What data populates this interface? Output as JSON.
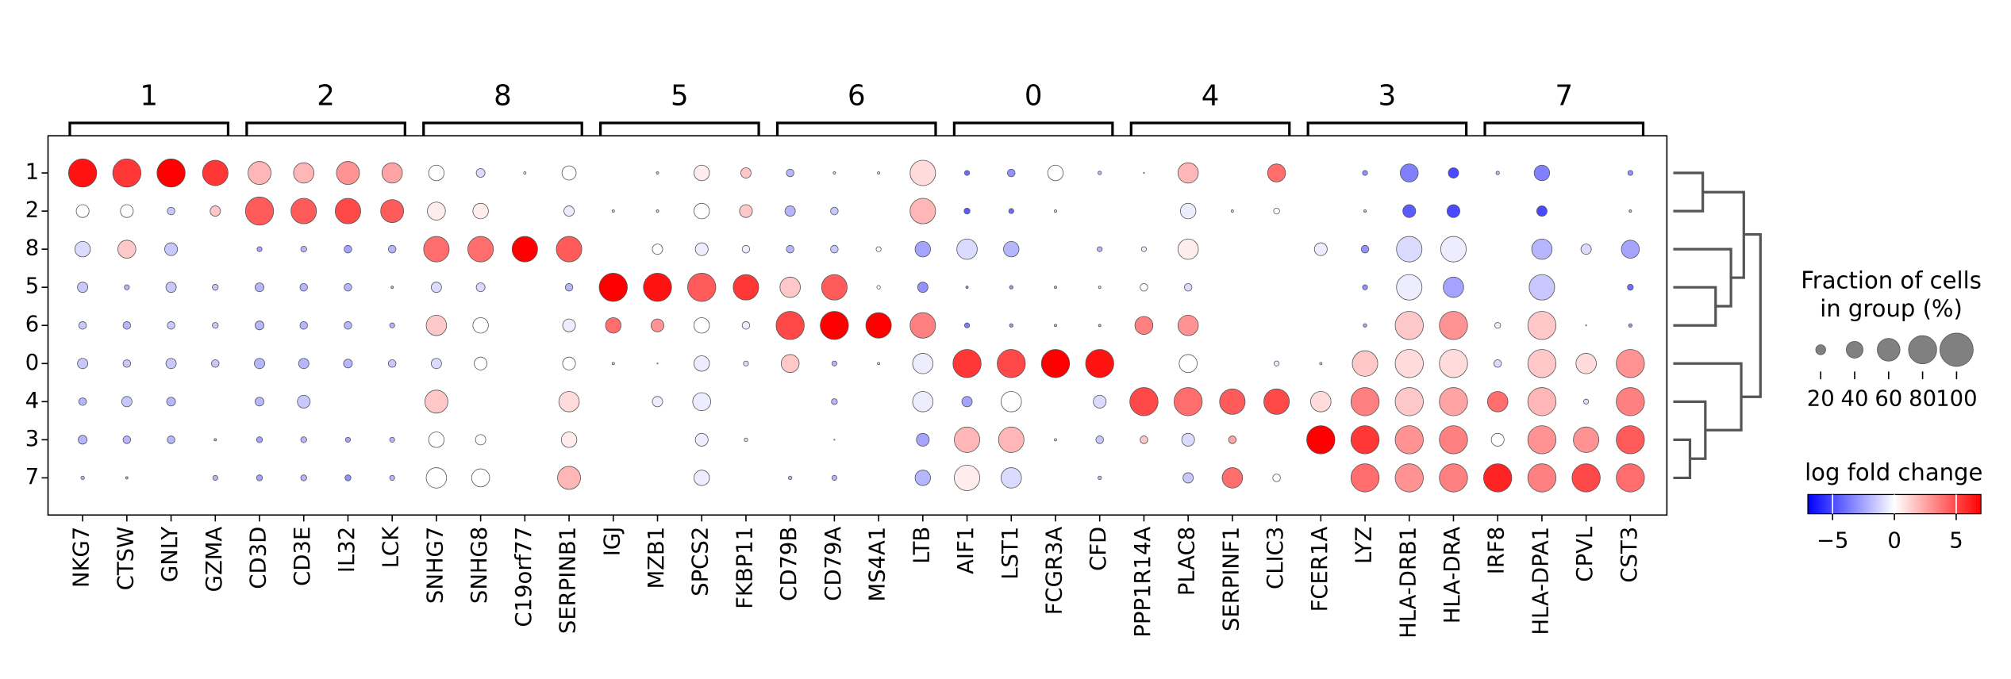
{
  "chart_data": {
    "type": "dotplot",
    "groups": [
      "1",
      "2",
      "8",
      "5",
      "6",
      "0",
      "4",
      "3",
      "7"
    ],
    "gene_groups": [
      {
        "label": "1",
        "genes": [
          "NKG7",
          "CTSW",
          "GNLY",
          "GZMA"
        ]
      },
      {
        "label": "2",
        "genes": [
          "CD3D",
          "CD3E",
          "IL32",
          "LCK"
        ]
      },
      {
        "label": "8",
        "genes": [
          "SNHG7",
          "SNHG8",
          "C19orf77",
          "SERPINB1"
        ]
      },
      {
        "label": "5",
        "genes": [
          "IGJ",
          "MZB1",
          "SPCS2",
          "FKBP11"
        ]
      },
      {
        "label": "6",
        "genes": [
          "CD79B",
          "CD79A",
          "MS4A1",
          "LTB"
        ]
      },
      {
        "label": "0",
        "genes": [
          "AIF1",
          "LST1",
          "FCGR3A",
          "CFD"
        ]
      },
      {
        "label": "4",
        "genes": [
          "PPP1R14A",
          "PLAC8",
          "SERPINF1",
          "CLIC3"
        ]
      },
      {
        "label": "3",
        "genes": [
          "FCER1A",
          "LYZ",
          "HLA-DRB1",
          "HLA-DRA"
        ]
      },
      {
        "label": "7",
        "genes": [
          "IRF8",
          "HLA-DPA1",
          "CPVL",
          "CST3"
        ]
      }
    ],
    "fraction": [
      [
        80,
        28,
        36,
        21,
        14,
        21,
        14,
        17,
        5
      ],
      [
        80,
        28,
        44,
        8,
        14,
        14,
        21,
        14,
        3
      ],
      [
        80,
        14,
        28,
        21,
        14,
        21,
        17,
        14,
        0
      ],
      [
        70,
        21,
        0,
        10,
        10,
        14,
        0,
        3,
        8
      ],
      [
        61,
        80,
        8,
        17,
        17,
        21,
        17,
        10,
        10
      ],
      [
        52,
        70,
        10,
        14,
        14,
        21,
        28,
        10,
        10
      ],
      [
        61,
        70,
        14,
        14,
        14,
        17,
        0,
        8,
        10
      ],
      [
        52,
        61,
        14,
        3,
        8,
        14,
        0,
        8,
        8
      ],
      [
        36,
        44,
        70,
        21,
        52,
        21,
        61,
        36,
        52
      ],
      [
        17,
        36,
        70,
        17,
        36,
        28,
        0,
        21,
        44
      ],
      [
        3,
        0,
        70,
        0,
        0,
        0,
        0,
        0,
        0
      ],
      [
        32,
        21,
        70,
        14,
        28,
        28,
        52,
        36,
        61
      ],
      [
        0,
        3,
        0,
        80,
        36,
        3,
        0,
        0,
        0
      ],
      [
        3,
        3,
        21,
        80,
        28,
        1,
        21,
        0,
        0
      ],
      [
        36,
        36,
        28,
        80,
        36,
        36,
        44,
        28,
        36
      ],
      [
        21,
        28,
        14,
        70,
        14,
        8,
        0,
        5,
        0
      ],
      [
        14,
        21,
        14,
        52,
        80,
        44,
        0,
        0,
        5
      ],
      [
        3,
        14,
        14,
        70,
        80,
        8,
        10,
        1,
        8
      ],
      [
        3,
        0,
        8,
        5,
        70,
        3,
        0,
        0,
        0
      ],
      [
        70,
        70,
        36,
        21,
        70,
        52,
        52,
        28,
        36
      ],
      [
        8,
        10,
        52,
        3,
        8,
        80,
        21,
        70,
        70
      ],
      [
        14,
        8,
        36,
        5,
        5,
        80,
        52,
        70,
        52
      ],
      [
        36,
        3,
        0,
        3,
        3,
        80,
        0,
        3,
        0
      ],
      [
        5,
        0,
        8,
        3,
        3,
        80,
        28,
        14,
        5
      ],
      [
        1,
        0,
        8,
        14,
        44,
        0,
        80,
        14,
        0
      ],
      [
        52,
        36,
        52,
        14,
        52,
        44,
        80,
        28,
        21
      ],
      [
        0,
        3,
        0,
        0,
        0,
        0,
        70,
        14,
        52
      ],
      [
        44,
        10,
        0,
        0,
        0,
        8,
        70,
        0,
        14
      ],
      [
        0,
        0,
        28,
        0,
        0,
        3,
        52,
        80,
        0
      ],
      [
        8,
        3,
        14,
        8,
        5,
        70,
        80,
        80,
        80
      ],
      [
        44,
        28,
        70,
        70,
        80,
        80,
        80,
        80,
        80
      ],
      [
        21,
        28,
        70,
        52,
        80,
        80,
        80,
        80,
        80
      ],
      [
        5,
        0,
        0,
        0,
        10,
        14,
        52,
        28,
        80
      ],
      [
        36,
        21,
        52,
        70,
        80,
        80,
        80,
        80,
        80
      ],
      [
        0,
        0,
        21,
        0,
        1,
        52,
        8,
        70,
        80
      ],
      [
        8,
        3,
        44,
        10,
        5,
        80,
        80,
        80,
        80
      ]
    ],
    "logfc": [
      [
        6.5,
        0,
        -1,
        -1.5,
        -1.5,
        -1.5,
        -2,
        -2,
        -2
      ],
      [
        5.5,
        0,
        1.5,
        -2,
        -2,
        -1.5,
        -1.5,
        -2,
        -2
      ],
      [
        7,
        -1.5,
        -1.5,
        -1.5,
        -1.5,
        -1.5,
        -2,
        -2,
        0
      ],
      [
        5.5,
        1.5,
        0,
        -1.5,
        -1.5,
        -1.5,
        0,
        -2,
        -2
      ],
      [
        2,
        4.5,
        -2.5,
        -2,
        -2,
        -2,
        -2,
        -2.5,
        -2.5
      ],
      [
        2,
        4.5,
        -2,
        -2,
        -2,
        -2,
        -1.5,
        -2,
        -2
      ],
      [
        3,
        5,
        -2.5,
        -2,
        -2,
        -2,
        0,
        -2.5,
        -3
      ],
      [
        2.5,
        4.5,
        -2,
        -2,
        -2,
        -1.5,
        0,
        -2,
        -2
      ],
      [
        0,
        0.5,
        4,
        -1,
        1.5,
        -1,
        1.5,
        0,
        0
      ],
      [
        -1,
        0.5,
        4,
        -1,
        0,
        0,
        0,
        0,
        0
      ],
      [
        -0.5,
        0,
        7,
        0,
        0,
        0,
        0,
        0,
        0
      ],
      [
        0,
        -0.5,
        4.5,
        -2,
        -0.5,
        0,
        1,
        0.5,
        2
      ],
      [
        0,
        -1,
        0,
        7,
        4,
        -1,
        0,
        0,
        0
      ],
      [
        -1.5,
        -1,
        0,
        6.5,
        3,
        0,
        -0.5,
        0,
        0
      ],
      [
        0.5,
        0,
        -0.5,
        4.5,
        0,
        -0.5,
        -0.5,
        -0.5,
        -0.5
      ],
      [
        1.5,
        1.5,
        -0.5,
        5.5,
        -0.5,
        -1,
        0,
        -1,
        0
      ],
      [
        -2,
        -2,
        -2,
        1.5,
        5,
        1.5,
        0,
        0,
        -2
      ],
      [
        -1,
        -1.5,
        -1.5,
        4.5,
        7,
        -2,
        -2,
        -1,
        -2
      ],
      [
        -1,
        0,
        0,
        0,
        7,
        -1,
        0,
        0,
        0
      ],
      [
        1,
        2,
        -2.5,
        -3,
        3.5,
        -0.5,
        -0.5,
        -2.5,
        -2
      ],
      [
        -4,
        -4.5,
        -1,
        -3,
        -3.5,
        5.5,
        -2.5,
        2,
        0.5
      ],
      [
        -3,
        -4,
        -2,
        -3,
        -3,
        5,
        0,
        2,
        -1
      ],
      [
        0,
        -1,
        0,
        -2,
        -2,
        7,
        0,
        -1,
        0
      ],
      [
        -2,
        0,
        -2,
        -1,
        -2,
        6.5,
        -1,
        -1.5,
        -2
      ],
      [
        -1,
        0,
        -0.5,
        0,
        3.5,
        0,
        5,
        1.5,
        0
      ],
      [
        2,
        -0.5,
        0.5,
        -1,
        3,
        0,
        4,
        -1,
        -1.5
      ],
      [
        0,
        -1,
        0,
        0,
        0,
        0,
        4.5,
        2.5,
        4
      ],
      [
        4,
        0,
        0,
        0,
        0,
        -0.5,
        5,
        0,
        0
      ],
      [
        0,
        0,
        -0.5,
        0,
        0,
        -1,
        1,
        7,
        0
      ],
      [
        -3,
        -2,
        -3,
        -3,
        -2.5,
        1.5,
        3.5,
        5.5,
        4
      ],
      [
        -3.5,
        -4.5,
        -1,
        -0.5,
        1.5,
        1,
        1.5,
        3,
        3
      ],
      [
        -5,
        -5,
        -0.5,
        -2.5,
        3,
        1,
        2.5,
        3.5,
        3.5
      ],
      [
        -2,
        0,
        0,
        0,
        -0.5,
        -1,
        4,
        0,
        6
      ],
      [
        -3.5,
        -5,
        -2,
        -1.5,
        1.5,
        1.5,
        2,
        3,
        3.5
      ],
      [
        0,
        0,
        -1,
        0,
        -1,
        1,
        -1,
        3,
        5
      ],
      [
        -3,
        -2,
        -2.5,
        -4,
        -3,
        3,
        3.5,
        4.5,
        4
      ]
    ],
    "size_legend_title": "Fraction of cells\nin group (%)",
    "size_legend_ticks": [
      20,
      40,
      60,
      80,
      100
    ],
    "size_legend_color": "#808080",
    "color_legend_title": "log fold change",
    "colormap": [
      "#0000ff",
      "#ffffff",
      "#ff0000"
    ],
    "clim": [
      -7,
      7
    ],
    "cticks": [
      {
        "value": -5,
        "label": "−5"
      },
      0,
      5
    ]
  }
}
